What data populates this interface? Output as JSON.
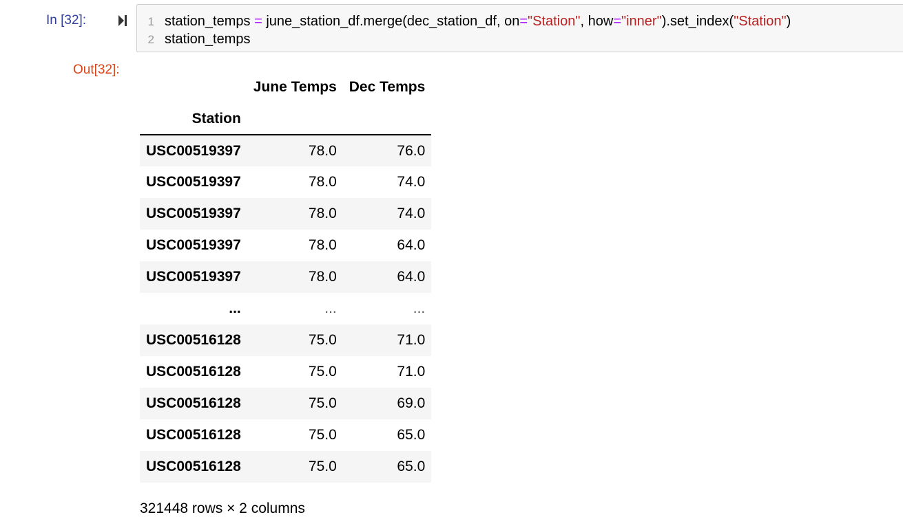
{
  "input_cell": {
    "prompt": "In [32]:",
    "run_icon": "run-cell-icon",
    "lines": [
      {
        "number": "1",
        "tokens": [
          {
            "t": "station_temps ",
            "k": "plain"
          },
          {
            "t": "=",
            "k": "op"
          },
          {
            "t": " june_station_df.merge(dec_station_df, on",
            "k": "plain"
          },
          {
            "t": "=",
            "k": "op"
          },
          {
            "t": "\"Station\"",
            "k": "str"
          },
          {
            "t": ", how",
            "k": "plain"
          },
          {
            "t": "=",
            "k": "op"
          },
          {
            "t": "\"inner\"",
            "k": "str"
          },
          {
            "t": ").set_index(",
            "k": "plain"
          },
          {
            "t": "\"Station\"",
            "k": "str"
          },
          {
            "t": ")",
            "k": "plain"
          }
        ]
      },
      {
        "number": "2",
        "tokens": [
          {
            "t": "station_temps",
            "k": "plain"
          }
        ]
      }
    ]
  },
  "output_cell": {
    "prompt": "Out[32]:",
    "table": {
      "columns": [
        "June Temps",
        "Dec Temps"
      ],
      "index_name": "Station",
      "rows": [
        {
          "index": "USC00519397",
          "values": [
            "78.0",
            "76.0"
          ]
        },
        {
          "index": "USC00519397",
          "values": [
            "78.0",
            "74.0"
          ]
        },
        {
          "index": "USC00519397",
          "values": [
            "78.0",
            "74.0"
          ]
        },
        {
          "index": "USC00519397",
          "values": [
            "78.0",
            "64.0"
          ]
        },
        {
          "index": "USC00519397",
          "values": [
            "78.0",
            "64.0"
          ]
        },
        {
          "index": "...",
          "values": [
            "...",
            "..."
          ]
        },
        {
          "index": "USC00516128",
          "values": [
            "75.0",
            "71.0"
          ]
        },
        {
          "index": "USC00516128",
          "values": [
            "75.0",
            "71.0"
          ]
        },
        {
          "index": "USC00516128",
          "values": [
            "75.0",
            "69.0"
          ]
        },
        {
          "index": "USC00516128",
          "values": [
            "75.0",
            "65.0"
          ]
        },
        {
          "index": "USC00516128",
          "values": [
            "75.0",
            "65.0"
          ]
        }
      ]
    },
    "shape_text": "321448 rows × 2 columns"
  },
  "colors": {
    "in_prompt": "#303f9f",
    "out_prompt": "#d84315",
    "operator": "#aa22ff",
    "string": "#ba2121",
    "code_bg": "#f7f7f7",
    "stripe_bg": "#f5f5f5"
  }
}
